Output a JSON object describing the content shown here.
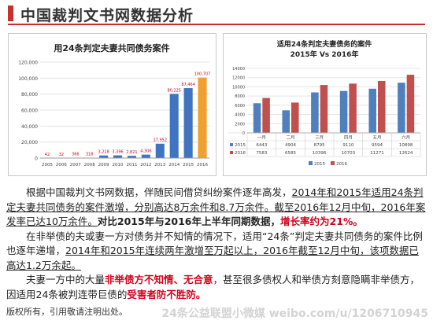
{
  "page": {
    "title": "中国裁判文书网数据分析",
    "footer": "版权所有，引用敬请注明出处。",
    "watermark": "24条公益联盟小微媒 weibo.com/u/1206710945"
  },
  "colors": {
    "accent": "#c9302c",
    "bar_blue": "#3f74c0",
    "bar_orange": "#f0a030",
    "s2015": "#4f7fbc",
    "s2016": "#c0504d"
  },
  "chart_data": [
    {
      "type": "bar",
      "title": "用24条判定夫妻共同债务案件",
      "categories": [
        "2005",
        "2006",
        "2007",
        "2008",
        "2009",
        "2010",
        "2011",
        "2012",
        "2013",
        "2014",
        "2015",
        "2016"
      ],
      "values": [
        42,
        32,
        366,
        318,
        3218,
        3396,
        2821,
        4306,
        17952,
        80225,
        87464,
        100707
      ],
      "value_labels": [
        "42",
        "32",
        "366",
        "318",
        "3,218",
        "3,396",
        "2,821",
        "4,306",
        "17,952",
        "80,225",
        "87,464",
        "100,707"
      ],
      "highlight": "2016",
      "ylim": [
        0,
        120000
      ],
      "yticks": [
        "0",
        "20,000",
        "40,000",
        "60,000",
        "80,000",
        "100,000",
        "120,000"
      ],
      "grid": true
    },
    {
      "type": "bar",
      "title": "适用24条判定夫妻债务的案件",
      "subtitle": "2015年 Vs 2016年",
      "categories": [
        "一月",
        "二月",
        "三月",
        "四月",
        "五月",
        "六月"
      ],
      "series": [
        {
          "name": "2015",
          "values": [
            6443,
            4904,
            8795,
            9110,
            9594,
            10898
          ]
        },
        {
          "name": "2016",
          "values": [
            7583,
            6585,
            10396,
            10703,
            11271,
            12624
          ]
        }
      ],
      "ylim": [
        0,
        14000
      ],
      "yticks": [
        "0",
        "2000",
        "4000",
        "6000",
        "8000",
        "10000",
        "12000",
        "14000"
      ],
      "legend": "bottom",
      "grid": true,
      "table": true
    }
  ],
  "text": {
    "p1_a": "根据中国裁判文书网数据，伴随民间借贷纠纷案件逐年高发，",
    "p1_b": "2014年和2015年适用24条判定夫妻共同债务的案件激增，分别高达8万余件和8.7万余件。截至2016年12月中旬，2016年案发率已达10万余件。",
    "p1_c": "对比2015年与2016年上半年同期数据，",
    "p1_d": "增长率约为21%。",
    "p2_a": "在非举债的夫或妻一方对债务并不知情的情况下，适用“24条”判定夫妻共同债务的案件比例也逐年递增，",
    "p2_b": "2014年和2015年连续两年激增至万起以上，2016年截至12月中旬，该项数据已高达1.2万余起。",
    "p3_a": "夫妻一方中的大量",
    "p3_b": "非举债方不知情、无合意",
    "p3_c": "，甚至很多债权人和举债方刻意隐瞒非举债方，因适用24条被判连带巨债的",
    "p3_d": "受害者防不胜防。"
  }
}
